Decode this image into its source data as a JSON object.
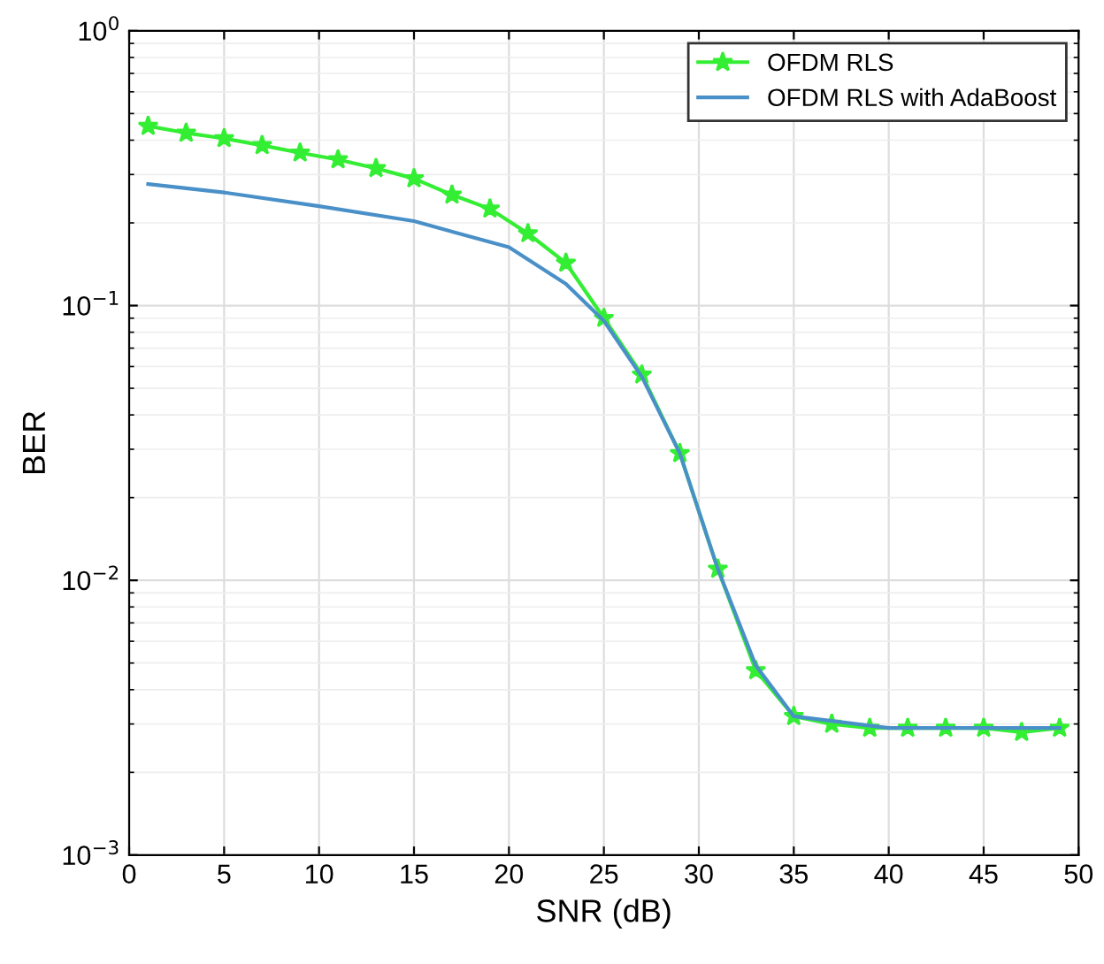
{
  "chart_data": {
    "type": "line",
    "xlabel": "SNR (dB)",
    "ylabel": "BER",
    "log": "y",
    "grid": true,
    "legend": "top right",
    "xlim": [
      0,
      50
    ],
    "xticks": [
      0,
      5,
      10,
      15,
      20,
      25,
      30,
      35,
      40,
      45,
      50
    ],
    "ylim": [
      0.001,
      1
    ],
    "yticks": [
      {
        "value": 0.001,
        "label": "10$^{−3}$"
      },
      {
        "value": 0.01,
        "label": "10$^{−2}$"
      },
      {
        "value": 0.1,
        "label": "10$^{−1}$"
      },
      {
        "value": 1,
        "label": "10$^{0}$"
      }
    ],
    "series": [
      {
        "name": "OFDM RLS",
        "color": "#33ee33",
        "marker": "star",
        "x": [
          1,
          3,
          5,
          7,
          9,
          11,
          13,
          15,
          17,
          19,
          21,
          23,
          25,
          27,
          29,
          31,
          33,
          35,
          37,
          39,
          41,
          43,
          45,
          47,
          49
        ],
        "values": [
          0.45,
          0.425,
          0.406,
          0.383,
          0.36,
          0.34,
          0.316,
          0.29,
          0.253,
          0.225,
          0.183,
          0.143,
          0.09,
          0.056,
          0.029,
          0.011,
          0.0047,
          0.0032,
          0.003,
          0.0029,
          0.0029,
          0.0029,
          0.0029,
          0.0028,
          0.0029
        ]
      },
      {
        "name": "OFDM RLS with AdaBoost",
        "color": "#4a90c8",
        "marker": "none",
        "x": [
          1,
          5,
          10,
          15,
          20,
          23,
          25,
          27,
          29,
          31,
          33,
          35,
          40,
          45,
          49
        ],
        "values": [
          0.277,
          0.258,
          0.23,
          0.203,
          0.163,
          0.12,
          0.088,
          0.055,
          0.029,
          0.011,
          0.0049,
          0.0032,
          0.0029,
          0.0029,
          0.0029
        ]
      }
    ]
  }
}
